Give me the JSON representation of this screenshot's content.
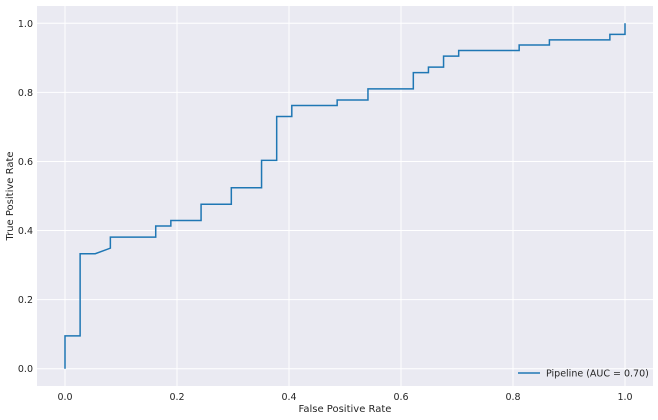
{
  "chart_data": {
    "type": "line",
    "title": "",
    "xlabel": "False Positive Rate",
    "ylabel": "True Positive Rate",
    "xlim": [
      -0.05,
      1.05
    ],
    "ylim": [
      -0.05,
      1.05
    ],
    "xticks": [
      "0.0",
      "0.2",
      "0.4",
      "0.6",
      "0.8",
      "1.0"
    ],
    "yticks": [
      "0.0",
      "0.2",
      "0.4",
      "0.6",
      "0.8",
      "1.0"
    ],
    "grid": true,
    "legend_position": "lower-right",
    "colors": {
      "background": "#eaeaf2",
      "grid": "#ffffff",
      "line": "#1f77b4"
    },
    "series": [
      {
        "name": "Pipeline (AUC = 0.70)",
        "step": true,
        "x": [
          0.0,
          0.0,
          0.027,
          0.027,
          0.054,
          0.081,
          0.081,
          0.162,
          0.162,
          0.189,
          0.189,
          0.243,
          0.243,
          0.297,
          0.297,
          0.351,
          0.351,
          0.378,
          0.378,
          0.405,
          0.405,
          0.486,
          0.486,
          0.541,
          0.541,
          0.622,
          0.622,
          0.649,
          0.649,
          0.676,
          0.676,
          0.703,
          0.703,
          0.811,
          0.811,
          0.865,
          0.865,
          0.973,
          0.973,
          1.0,
          1.0
        ],
        "y": [
          0.0,
          0.095,
          0.095,
          0.333,
          0.333,
          0.349,
          0.381,
          0.381,
          0.413,
          0.413,
          0.429,
          0.429,
          0.476,
          0.476,
          0.524,
          0.524,
          0.603,
          0.603,
          0.73,
          0.73,
          0.762,
          0.762,
          0.778,
          0.778,
          0.81,
          0.81,
          0.857,
          0.857,
          0.873,
          0.873,
          0.905,
          0.905,
          0.921,
          0.921,
          0.937,
          0.937,
          0.952,
          0.952,
          0.968,
          0.968,
          1.0
        ]
      }
    ]
  }
}
